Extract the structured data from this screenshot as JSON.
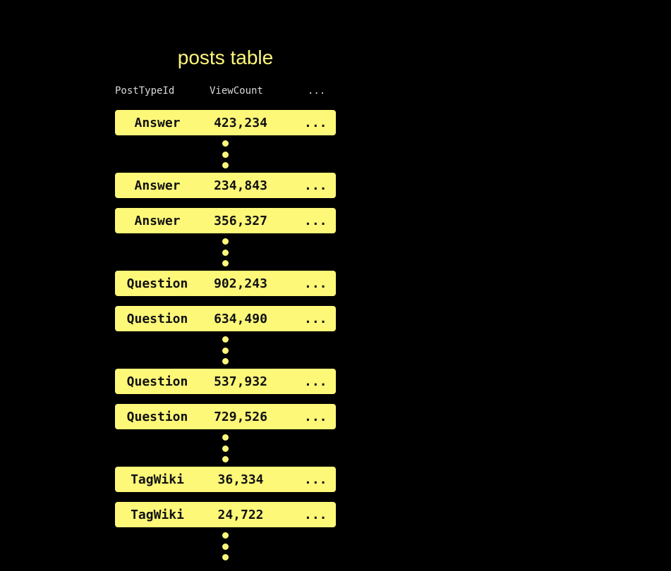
{
  "title": "posts table",
  "headers": [
    "PostTypeId",
    "ViewCount",
    "..."
  ],
  "rows": [
    {
      "type": "Answer",
      "views": "423,234",
      "more": "..."
    },
    {
      "type": "Answer",
      "views": "234,843",
      "more": "..."
    },
    {
      "type": "Answer",
      "views": "356,327",
      "more": "..."
    },
    {
      "type": "Question",
      "views": "902,243",
      "more": "..."
    },
    {
      "type": "Question",
      "views": "634,490",
      "more": "..."
    },
    {
      "type": "Question",
      "views": "537,932",
      "more": "..."
    },
    {
      "type": "Question",
      "views": "729,526",
      "more": "..."
    },
    {
      "type": "TagWiki",
      "views": "36,334",
      "more": "..."
    },
    {
      "type": "TagWiki",
      "views": "24,722",
      "more": "..."
    }
  ],
  "colors": {
    "accent": "#fef879",
    "background": "#000000"
  }
}
